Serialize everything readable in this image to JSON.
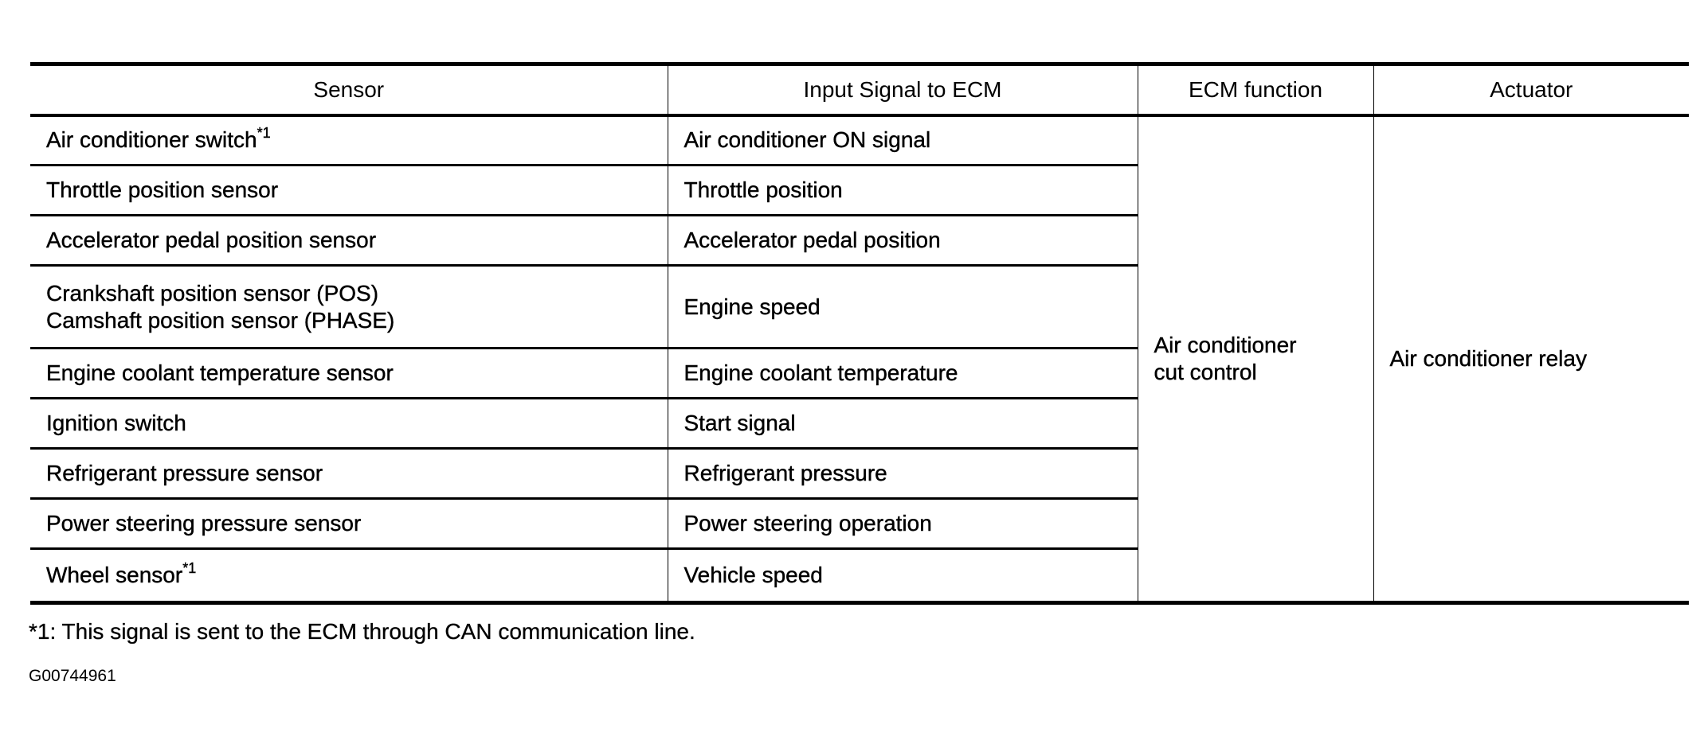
{
  "table": {
    "headers": [
      "Sensor",
      "Input Signal to ECM",
      "ECM function",
      "Actuator"
    ],
    "rows": [
      {
        "sensor": "Air conditioner switch",
        "sensor_note": "*1",
        "signal": "Air conditioner ON signal"
      },
      {
        "sensor": "Throttle position sensor",
        "signal": "Throttle position"
      },
      {
        "sensor": "Accelerator pedal position sensor",
        "signal": "Accelerator pedal position"
      },
      {
        "sensor": "Crankshaft position sensor (POS)",
        "sensor_line2": "Camshaft position sensor (PHASE)",
        "signal": "Engine speed"
      },
      {
        "sensor": "Engine coolant temperature sensor",
        "signal": "Engine coolant temperature"
      },
      {
        "sensor": "Ignition switch",
        "signal": "Start signal"
      },
      {
        "sensor": "Refrigerant pressure sensor",
        "signal": "Refrigerant pressure"
      },
      {
        "sensor": "Power steering pressure sensor",
        "signal": "Power steering operation"
      },
      {
        "sensor": "Wheel sensor",
        "sensor_note": "*1",
        "signal": "Vehicle speed"
      }
    ],
    "ecm_function_line1": "Air conditioner",
    "ecm_function_line2": "cut control",
    "actuator": "Air conditioner relay"
  },
  "footnote": "*1: This signal is sent to the ECM through CAN communication line.",
  "figure_id": "G00744961"
}
